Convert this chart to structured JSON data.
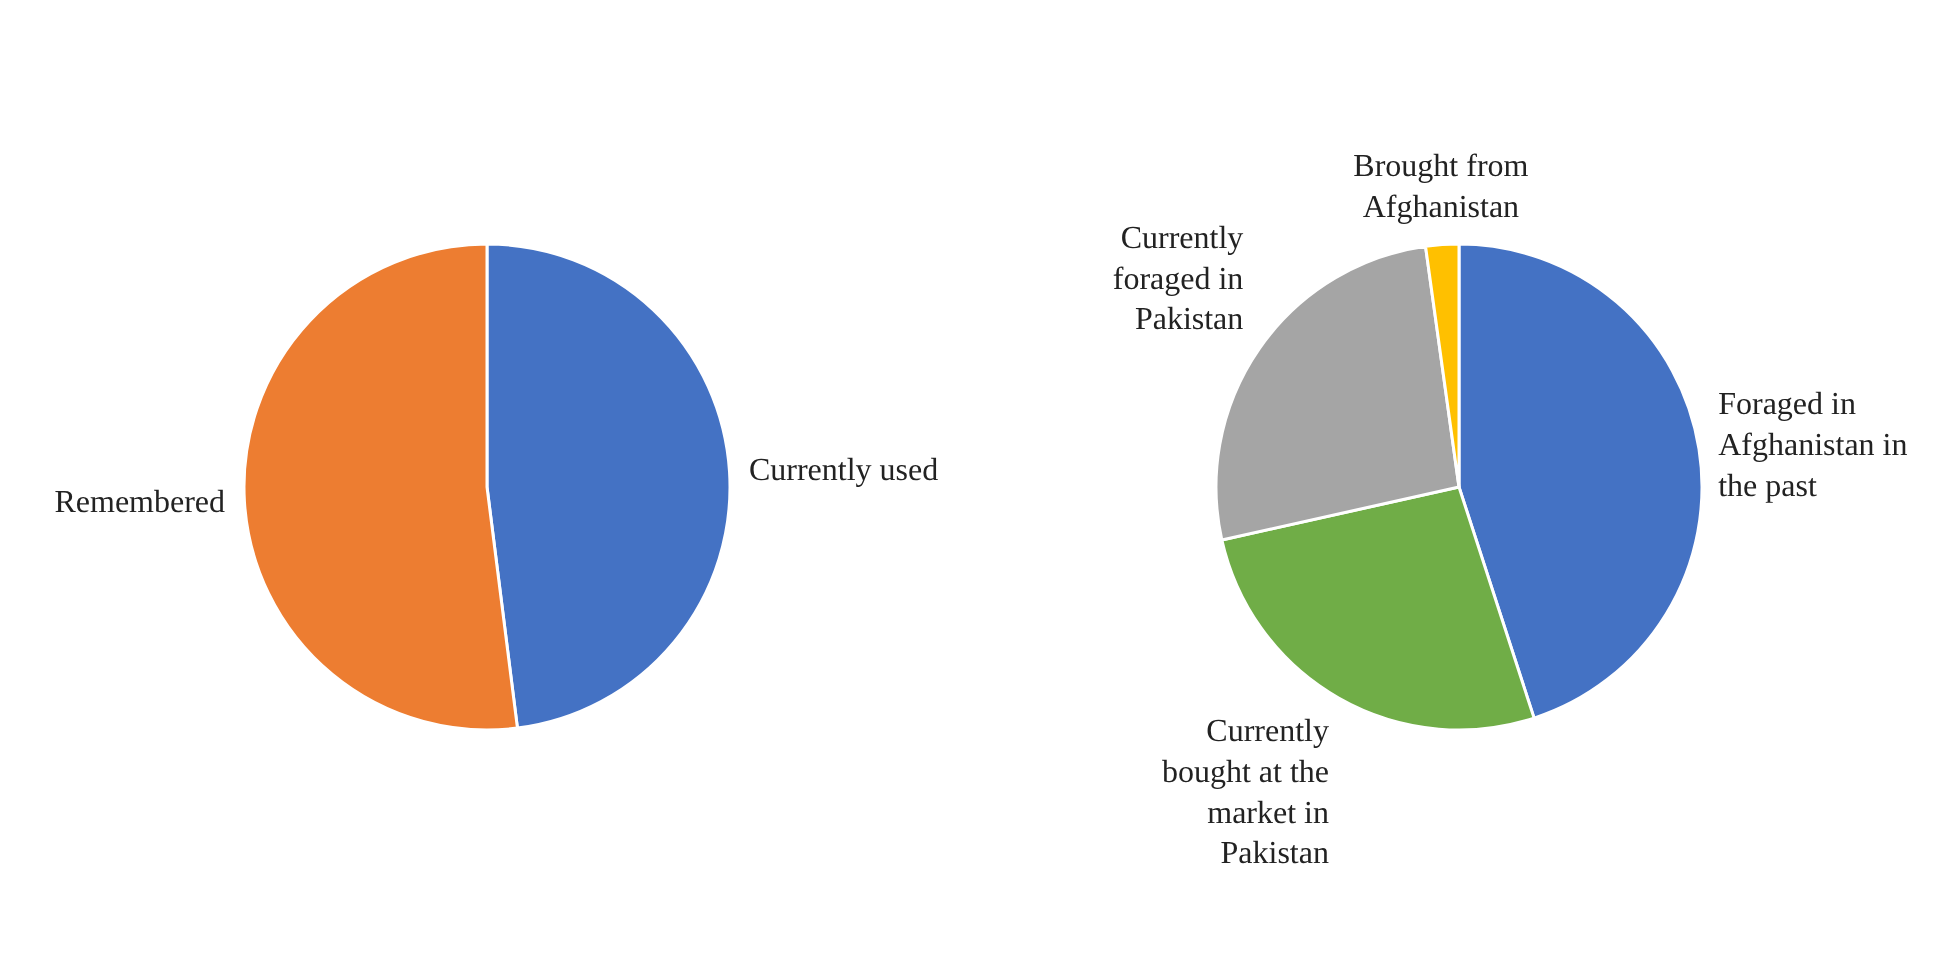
{
  "chart_data": [
    {
      "type": "pie",
      "categories": [
        "Currently used",
        "Remembered"
      ],
      "values": [
        48,
        52
      ],
      "colors": [
        "#4472c4",
        "#ed7d31"
      ]
    },
    {
      "type": "pie",
      "categories": [
        "Foraged in Afghanistan in the past",
        "Currently bought at the market in Pakistan",
        "Currently foraged in Pakistan",
        "Brought from Afghanistan"
      ],
      "values": [
        45,
        26.5,
        26.3,
        2.2
      ],
      "colors": [
        "#4472c4",
        "#70ad47",
        "#a5a5a5",
        "#ffc000"
      ]
    }
  ]
}
